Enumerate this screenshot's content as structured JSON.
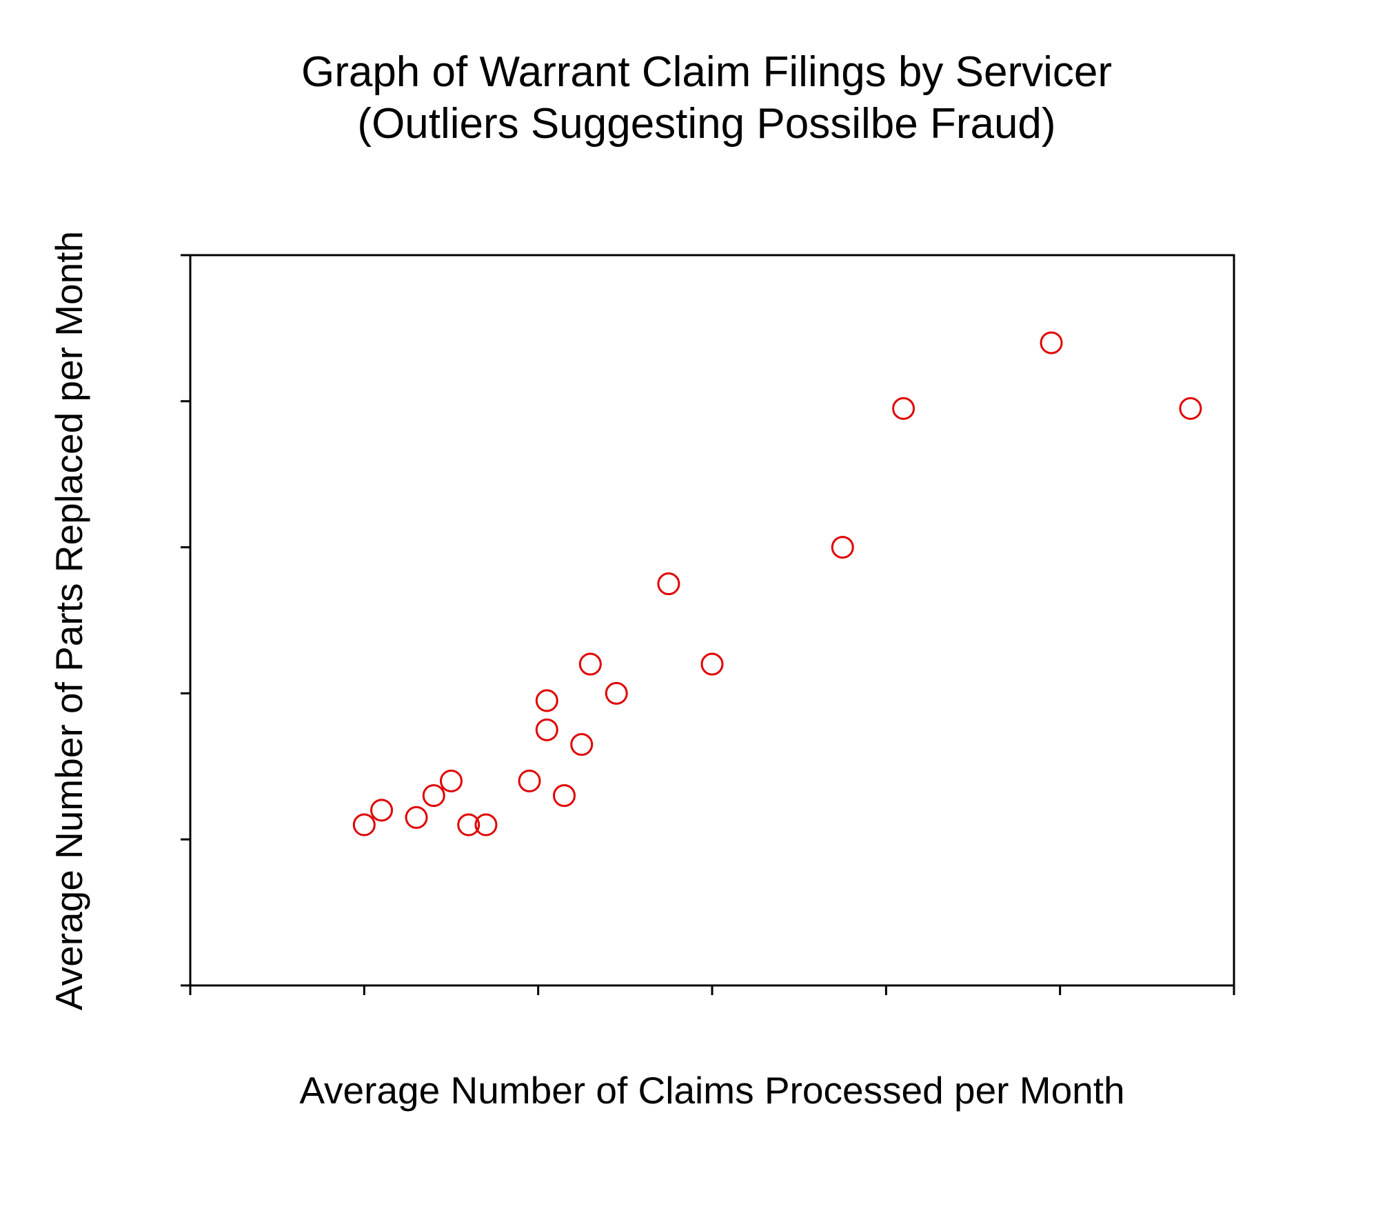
{
  "chart_data": {
    "type": "scatter",
    "title": "Graph of Warrant Claim Filings by Servicer",
    "subtitle": "(Outliers Suggesting Possilbe Fraud)",
    "xlabel": "Average Number of Claims Processed per Month",
    "ylabel": "Average Number of Parts Replaced per Month",
    "xlim": [
      0,
      6
    ],
    "ylim": [
      0,
      5
    ],
    "x_ticks": [
      0,
      1,
      2,
      3,
      4,
      5,
      6
    ],
    "y_ticks": [
      0,
      1,
      2,
      3,
      4,
      5
    ],
    "tick_labels_shown": false,
    "grid": false,
    "marker": "open-circle",
    "point_color": "#e00000",
    "series": [
      {
        "x": [
          1.0,
          1.1,
          1.3,
          1.4,
          1.5,
          1.6,
          1.7,
          1.95,
          2.05,
          2.05,
          2.15,
          2.25,
          2.3,
          2.45,
          2.75,
          3.0,
          3.75,
          4.1,
          4.95,
          5.75
        ],
        "y": [
          1.1,
          1.2,
          1.15,
          1.3,
          1.4,
          1.1,
          1.1,
          1.4,
          1.75,
          1.95,
          1.3,
          1.65,
          2.2,
          2.0,
          2.75,
          2.2,
          3.0,
          3.95,
          4.4,
          3.95
        ]
      }
    ]
  }
}
